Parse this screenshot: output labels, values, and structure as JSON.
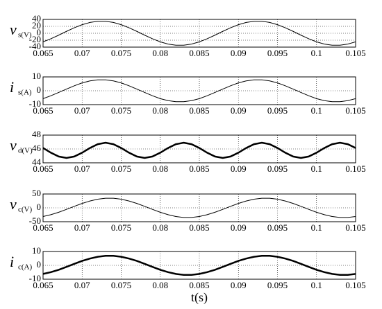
{
  "chart_data": [
    {
      "type": "line",
      "ylabel": "v",
      "ylabel_sub": "s(V)",
      "color": "#000000",
      "line_width": 1,
      "grid": true,
      "xlim": [
        0.065,
        0.105
      ],
      "xticks": [
        0.065,
        0.07,
        0.075,
        0.08,
        0.085,
        0.09,
        0.095,
        0.1,
        0.105
      ],
      "ylim": [
        -40,
        40
      ],
      "yticks": [
        -40,
        -20,
        0,
        20,
        40
      ],
      "x": [
        0.065,
        0.066,
        0.067,
        0.068,
        0.069,
        0.07,
        0.071,
        0.072,
        0.073,
        0.074,
        0.075,
        0.076,
        0.077,
        0.078,
        0.079,
        0.08,
        0.081,
        0.082,
        0.083,
        0.084,
        0.085,
        0.086,
        0.087,
        0.088,
        0.089,
        0.09,
        0.091,
        0.092,
        0.093,
        0.094,
        0.095,
        0.096,
        0.097,
        0.098,
        0.099,
        0.1,
        0.101,
        0.102,
        0.103,
        0.104,
        0.105
      ],
      "values": [
        -24.7,
        -15.9,
        -5.5,
        5.5,
        15.9,
        24.7,
        31.2,
        34.6,
        34.6,
        31.2,
        24.7,
        15.9,
        5.5,
        -5.5,
        -15.9,
        -24.7,
        -31.2,
        -34.6,
        -34.6,
        -31.2,
        -24.7,
        -15.9,
        -5.5,
        5.5,
        15.9,
        24.7,
        31.2,
        34.6,
        34.6,
        31.2,
        24.7,
        15.9,
        5.5,
        -5.5,
        -15.9,
        -24.7,
        -31.2,
        -34.6,
        -34.6,
        -31.2,
        -24.7
      ]
    },
    {
      "type": "line",
      "ylabel": "i",
      "ylabel_sub": "s(A)",
      "color": "#000000",
      "line_width": 1,
      "grid": true,
      "xlim": [
        0.065,
        0.105
      ],
      "xticks": [
        0.065,
        0.07,
        0.075,
        0.08,
        0.085,
        0.09,
        0.095,
        0.1,
        0.105
      ],
      "ylim": [
        -10,
        10
      ],
      "yticks": [
        -10,
        0,
        10
      ],
      "x": [
        0.065,
        0.066,
        0.067,
        0.068,
        0.069,
        0.07,
        0.071,
        0.072,
        0.073,
        0.074,
        0.075,
        0.076,
        0.077,
        0.078,
        0.079,
        0.08,
        0.081,
        0.082,
        0.083,
        0.084,
        0.085,
        0.086,
        0.087,
        0.088,
        0.089,
        0.09,
        0.091,
        0.092,
        0.093,
        0.094,
        0.095,
        0.096,
        0.097,
        0.098,
        0.099,
        0.1,
        0.101,
        0.102,
        0.103,
        0.104,
        0.105
      ],
      "values": [
        -5.7,
        -3.6,
        -1.2,
        1.2,
        3.6,
        5.7,
        7.1,
        7.9,
        7.9,
        7.1,
        5.7,
        3.6,
        1.2,
        -1.2,
        -3.6,
        -5.7,
        -7.1,
        -7.9,
        -7.9,
        -7.1,
        -5.7,
        -3.6,
        -1.2,
        1.2,
        3.6,
        5.7,
        7.1,
        7.9,
        7.9,
        7.1,
        5.7,
        3.6,
        1.2,
        -1.2,
        -3.6,
        -5.7,
        -7.1,
        -7.9,
        -7.9,
        -7.1,
        -5.7
      ]
    },
    {
      "type": "line",
      "ylabel": "v",
      "ylabel_sub": "d(V)",
      "color": "#000000",
      "line_width": 2.5,
      "grid": true,
      "xlim": [
        0.065,
        0.105
      ],
      "xticks": [
        0.065,
        0.07,
        0.075,
        0.08,
        0.085,
        0.09,
        0.095,
        0.1,
        0.105
      ],
      "ylim": [
        44,
        48
      ],
      "yticks": [
        44,
        46,
        48
      ],
      "x": [
        0.065,
        0.066,
        0.067,
        0.068,
        0.069,
        0.07,
        0.071,
        0.072,
        0.073,
        0.074,
        0.075,
        0.076,
        0.077,
        0.078,
        0.079,
        0.08,
        0.081,
        0.082,
        0.083,
        0.084,
        0.085,
        0.086,
        0.087,
        0.088,
        0.089,
        0.09,
        0.091,
        0.092,
        0.093,
        0.094,
        0.095,
        0.096,
        0.097,
        0.098,
        0.099,
        0.1,
        0.101,
        0.102,
        0.103,
        0.104,
        0.105
      ],
      "values": [
        46.14,
        45.46,
        44.91,
        44.7,
        44.91,
        45.46,
        46.14,
        46.69,
        46.9,
        46.69,
        46.14,
        45.46,
        44.91,
        44.7,
        44.91,
        45.46,
        46.14,
        46.69,
        46.9,
        46.69,
        46.14,
        45.46,
        44.91,
        44.7,
        44.91,
        45.46,
        46.14,
        46.69,
        46.9,
        46.69,
        46.14,
        45.46,
        44.91,
        44.7,
        44.91,
        45.46,
        46.14,
        46.69,
        46.9,
        46.69,
        46.14
      ]
    },
    {
      "type": "line",
      "ylabel": "v",
      "ylabel_sub": "c(V)",
      "color": "#000000",
      "line_width": 1,
      "grid": true,
      "xlim": [
        0.065,
        0.105
      ],
      "xticks": [
        0.065,
        0.07,
        0.075,
        0.08,
        0.085,
        0.09,
        0.095,
        0.1,
        0.105
      ],
      "ylim": [
        -50,
        50
      ],
      "yticks": [
        -50,
        0,
        50
      ],
      "x": [
        0.065,
        0.066,
        0.067,
        0.068,
        0.069,
        0.07,
        0.071,
        0.072,
        0.073,
        0.074,
        0.075,
        0.076,
        0.077,
        0.078,
        0.079,
        0.08,
        0.081,
        0.082,
        0.083,
        0.084,
        0.085,
        0.086,
        0.087,
        0.088,
        0.089,
        0.09,
        0.091,
        0.092,
        0.093,
        0.094,
        0.095,
        0.096,
        0.097,
        0.098,
        0.099,
        0.1,
        0.101,
        0.102,
        0.103,
        0.104,
        0.105
      ],
      "values": [
        -31.2,
        -24.7,
        -15.9,
        -5.5,
        5.5,
        15.9,
        24.7,
        31.2,
        34.6,
        34.6,
        31.2,
        24.7,
        15.9,
        5.5,
        -5.5,
        -15.9,
        -24.7,
        -31.2,
        -34.6,
        -34.6,
        -31.2,
        -24.7,
        -15.9,
        -5.5,
        5.5,
        15.9,
        24.7,
        31.2,
        34.6,
        34.6,
        31.2,
        24.7,
        15.9,
        5.5,
        -5.5,
        -15.9,
        -24.7,
        -31.2,
        -34.6,
        -34.6,
        -31.2
      ]
    },
    {
      "type": "line",
      "ylabel": "i",
      "ylabel_sub": "c(A)",
      "xlabel": "t(s)",
      "color": "#000000",
      "line_width": 2.5,
      "grid": true,
      "xlim": [
        0.065,
        0.105
      ],
      "xticks": [
        0.065,
        0.07,
        0.075,
        0.08,
        0.085,
        0.09,
        0.095,
        0.1,
        0.105
      ],
      "ylim": [
        -10,
        10
      ],
      "yticks": [
        -10,
        0,
        10
      ],
      "x": [
        0.065,
        0.066,
        0.067,
        0.068,
        0.069,
        0.07,
        0.071,
        0.072,
        0.073,
        0.074,
        0.075,
        0.076,
        0.077,
        0.078,
        0.079,
        0.08,
        0.081,
        0.082,
        0.083,
        0.084,
        0.085,
        0.086,
        0.087,
        0.088,
        0.089,
        0.09,
        0.091,
        0.092,
        0.093,
        0.094,
        0.095,
        0.096,
        0.097,
        0.098,
        0.099,
        0.1,
        0.101,
        0.102,
        0.103,
        0.104,
        0.105
      ],
      "values": [
        -6.2,
        -4.9,
        -3.2,
        -1.1,
        1.1,
        3.2,
        4.9,
        6.2,
        6.9,
        6.9,
        6.2,
        4.9,
        3.2,
        1.1,
        -1.1,
        -3.2,
        -4.9,
        -6.2,
        -6.9,
        -6.9,
        -6.2,
        -4.9,
        -3.2,
        -1.1,
        1.1,
        3.2,
        4.9,
        6.2,
        6.9,
        6.9,
        6.2,
        4.9,
        3.2,
        1.1,
        -1.1,
        -3.2,
        -4.9,
        -6.2,
        -6.9,
        -6.9,
        -6.2
      ]
    }
  ]
}
